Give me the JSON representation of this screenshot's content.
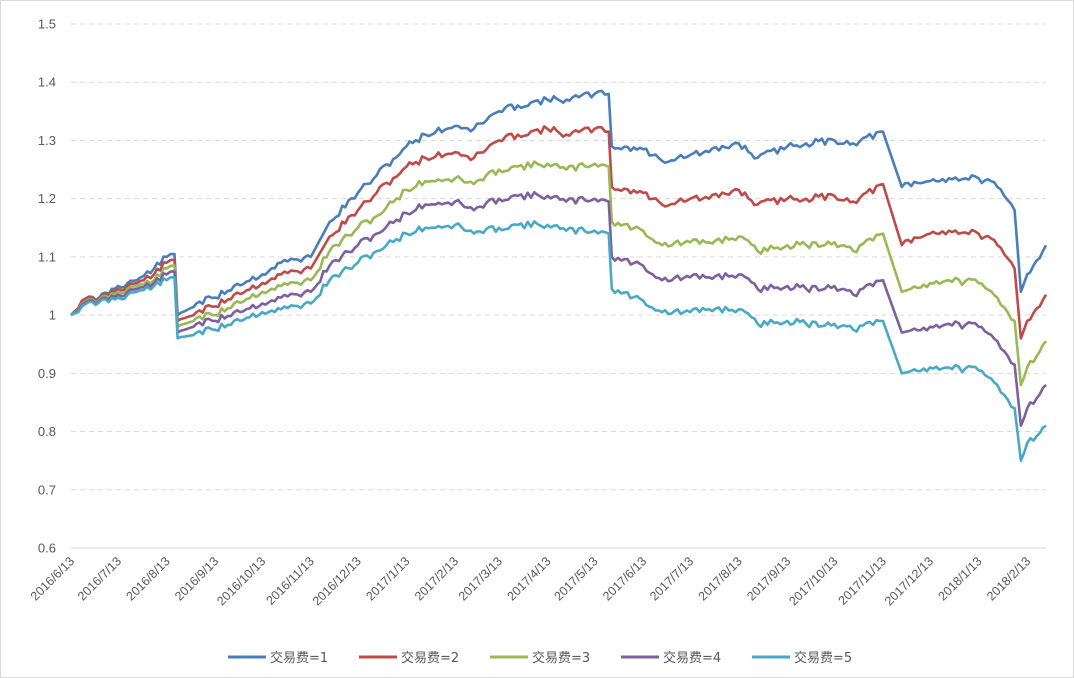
{
  "chart_data": {
    "type": "line",
    "title": "",
    "xlabel": "",
    "ylabel": "",
    "ylim": [
      0.6,
      1.5
    ],
    "yticks": [
      "0.6",
      "0.7",
      "0.8",
      "0.9",
      "1",
      "1.1",
      "1.2",
      "1.3",
      "1.4",
      "1.5"
    ],
    "xticks": [
      "2016/6/13",
      "2016/7/13",
      "2016/8/13",
      "2016/9/13",
      "2016/10/13",
      "2016/11/13",
      "2016/12/13",
      "2017/1/13",
      "2017/2/13",
      "2017/3/13",
      "2017/4/13",
      "2017/5/13",
      "2017/6/13",
      "2017/7/13",
      "2017/8/13",
      "2017/9/13",
      "2017/10/13",
      "2017/11/13",
      "2017/12/13",
      "2018/1/13",
      "2018/2/13"
    ],
    "grid": "horizontal dashed",
    "legend_position": "bottom",
    "x": [
      "2016/6/13",
      "2016/6/20",
      "2016/7/1",
      "2016/7/13",
      "2016/7/25",
      "2016/8/5",
      "2016/8/13",
      "2016/8/18",
      "2016/8/20",
      "2016/9/1",
      "2016/9/13",
      "2016/9/25",
      "2016/10/13",
      "2016/10/25",
      "2016/11/13",
      "2016/11/25",
      "2016/12/13",
      "2016/12/25",
      "2017/1/13",
      "2017/1/25",
      "2017/2/13",
      "2017/2/25",
      "2017/3/13",
      "2017/3/25",
      "2017/4/13",
      "2017/4/25",
      "2017/5/13",
      "2017/5/22",
      "2017/5/24",
      "2017/6/13",
      "2017/6/25",
      "2017/7/13",
      "2017/7/25",
      "2017/8/13",
      "2017/8/25",
      "2017/9/13",
      "2017/9/25",
      "2017/10/13",
      "2017/10/25",
      "2017/11/13",
      "2017/11/25",
      "2017/12/13",
      "2017/12/25",
      "2018/1/13",
      "2018/1/25",
      "2018/2/5",
      "2018/2/9",
      "2018/2/13",
      "2018/2/25"
    ],
    "series": [
      {
        "name": "交易费=1",
        "color": "#4a7ebb",
        "values": [
          1.0,
          1.025,
          1.03,
          1.05,
          1.06,
          1.08,
          1.1,
          1.105,
          1.0,
          1.02,
          1.03,
          1.05,
          1.07,
          1.09,
          1.1,
          1.16,
          1.21,
          1.24,
          1.29,
          1.31,
          1.325,
          1.32,
          1.35,
          1.36,
          1.37,
          1.37,
          1.38,
          1.38,
          1.29,
          1.285,
          1.265,
          1.275,
          1.28,
          1.295,
          1.27,
          1.29,
          1.295,
          1.3,
          1.295,
          1.315,
          1.22,
          1.23,
          1.235,
          1.235,
          1.22,
          1.18,
          1.04,
          1.07,
          1.12
        ]
      },
      {
        "name": "交易费=2",
        "color": "#be4b48",
        "values": [
          1.0,
          1.025,
          1.028,
          1.045,
          1.055,
          1.07,
          1.09,
          1.095,
          0.99,
          1.005,
          1.015,
          1.035,
          1.055,
          1.07,
          1.08,
          1.135,
          1.18,
          1.21,
          1.255,
          1.27,
          1.28,
          1.27,
          1.3,
          1.31,
          1.32,
          1.31,
          1.32,
          1.315,
          1.22,
          1.21,
          1.19,
          1.2,
          1.2,
          1.215,
          1.19,
          1.2,
          1.2,
          1.205,
          1.195,
          1.225,
          1.12,
          1.14,
          1.145,
          1.14,
          1.12,
          1.08,
          0.96,
          0.99,
          1.035
        ]
      },
      {
        "name": "交易费=3",
        "color": "#98b954",
        "values": [
          1.0,
          1.02,
          1.026,
          1.04,
          1.05,
          1.06,
          1.08,
          1.085,
          0.98,
          0.995,
          1.0,
          1.02,
          1.04,
          1.05,
          1.06,
          1.11,
          1.15,
          1.17,
          1.215,
          1.23,
          1.235,
          1.225,
          1.25,
          1.255,
          1.26,
          1.25,
          1.26,
          1.255,
          1.16,
          1.145,
          1.12,
          1.125,
          1.125,
          1.135,
          1.11,
          1.12,
          1.12,
          1.125,
          1.11,
          1.14,
          1.04,
          1.055,
          1.06,
          1.055,
          1.03,
          0.99,
          0.88,
          0.91,
          0.955
        ]
      },
      {
        "name": "交易费=4",
        "color": "#7d60a0",
        "values": [
          1.0,
          1.018,
          1.024,
          1.035,
          1.045,
          1.055,
          1.07,
          1.075,
          0.97,
          0.985,
          0.99,
          1.005,
          1.02,
          1.03,
          1.04,
          1.085,
          1.12,
          1.14,
          1.175,
          1.19,
          1.195,
          1.18,
          1.2,
          1.205,
          1.205,
          1.195,
          1.2,
          1.195,
          1.1,
          1.085,
          1.06,
          1.065,
          1.065,
          1.07,
          1.045,
          1.05,
          1.045,
          1.05,
          1.035,
          1.06,
          0.97,
          0.98,
          0.985,
          0.98,
          0.955,
          0.915,
          0.81,
          0.84,
          0.88
        ]
      },
      {
        "name": "交易费=5",
        "color": "#46aac5",
        "values": [
          1.0,
          1.015,
          1.022,
          1.03,
          1.04,
          1.05,
          1.06,
          1.065,
          0.96,
          0.97,
          0.975,
          0.99,
          1.005,
          1.01,
          1.02,
          1.06,
          1.09,
          1.11,
          1.14,
          1.15,
          1.155,
          1.14,
          1.15,
          1.155,
          1.155,
          1.145,
          1.145,
          1.14,
          1.045,
          1.025,
          1.005,
          1.005,
          1.01,
          1.01,
          0.985,
          0.99,
          0.985,
          0.985,
          0.975,
          0.99,
          0.9,
          0.91,
          0.91,
          0.905,
          0.88,
          0.84,
          0.75,
          0.78,
          0.81
        ]
      }
    ]
  }
}
